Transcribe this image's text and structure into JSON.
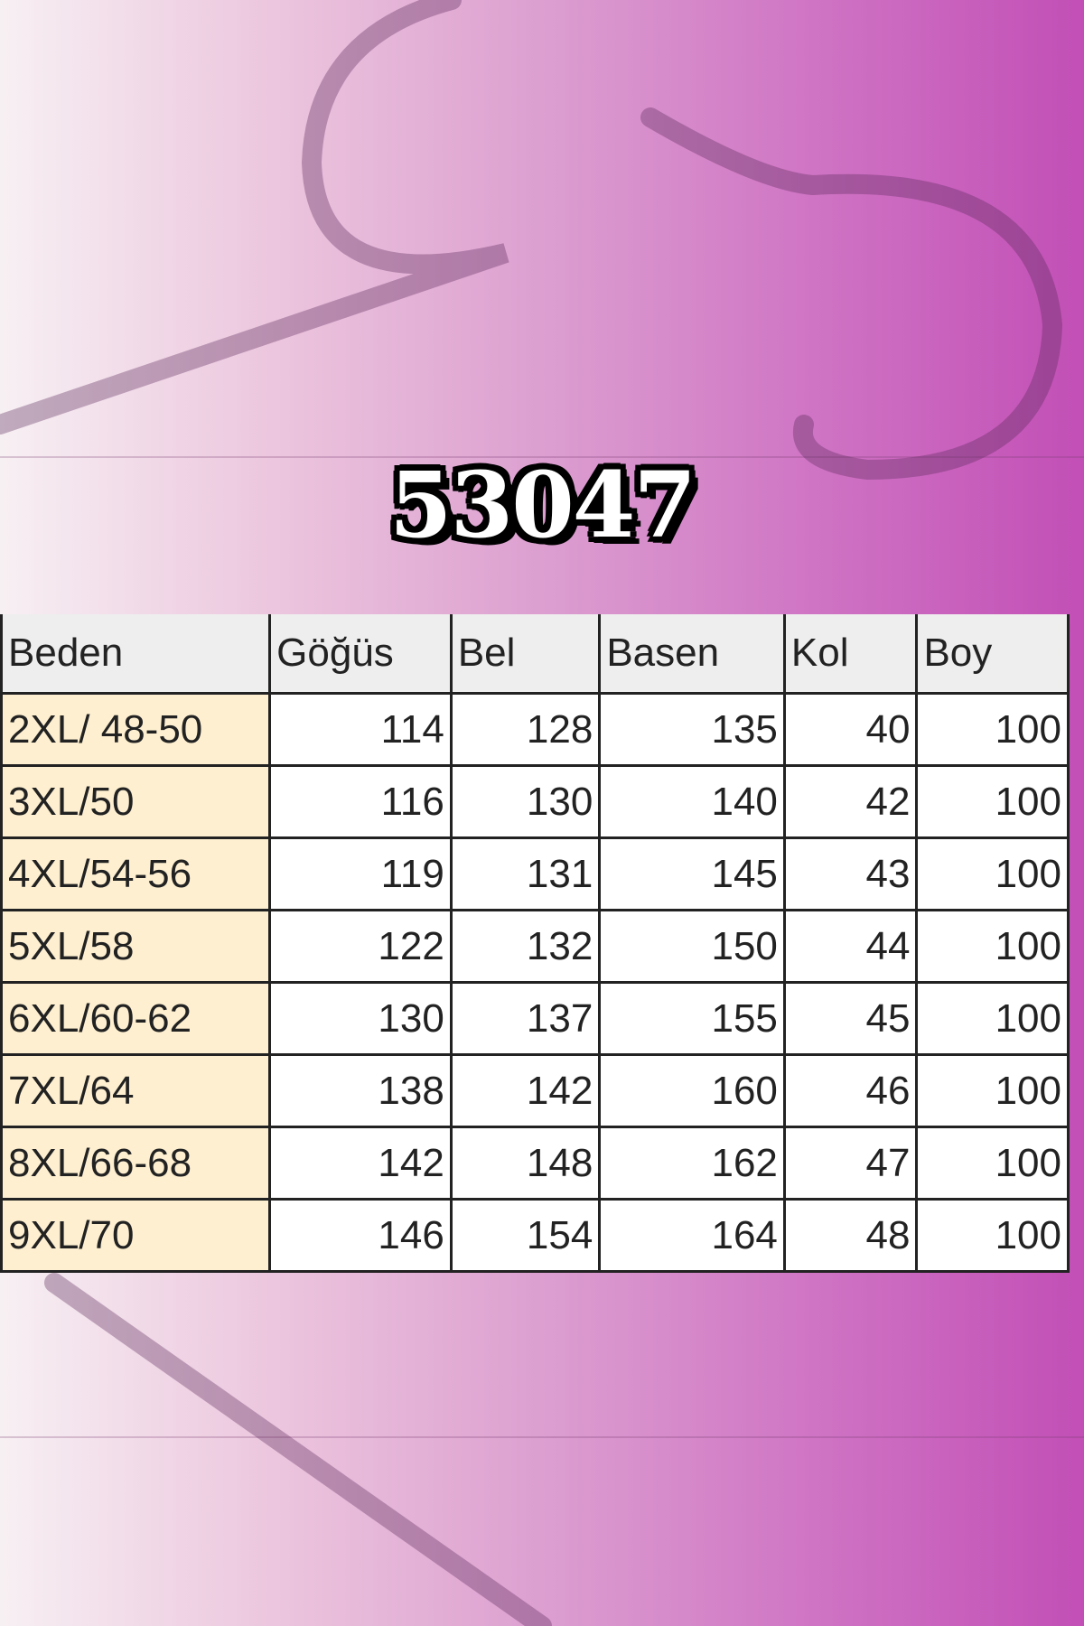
{
  "product_code": "53047",
  "colors": {
    "background_left": "#f7f0f3",
    "background_right": "#c24fb6",
    "size_cell": "#fdefd0",
    "header_cell": "#eeeeee"
  },
  "size_table": {
    "headers": [
      "Beden",
      "Göğüs",
      "Bel",
      "Basen",
      "Kol",
      "Boy"
    ],
    "rows": [
      [
        "2XL/ 48-50",
        "114",
        "128",
        "135",
        "40",
        "100"
      ],
      [
        "3XL/50",
        "116",
        "130",
        "140",
        "42",
        "100"
      ],
      [
        "4XL/54-56",
        "119",
        "131",
        "145",
        "43",
        "100"
      ],
      [
        "5XL/58",
        "122",
        "132",
        "150",
        "44",
        "100"
      ],
      [
        "6XL/60-62",
        "130",
        "137",
        "155",
        "45",
        "100"
      ],
      [
        "7XL/64",
        "138",
        "142",
        "160",
        "46",
        "100"
      ],
      [
        "8XL/66-68",
        "142",
        "148",
        "162",
        "47",
        "100"
      ],
      [
        "9XL/70",
        "146",
        "154",
        "164",
        "48",
        "100"
      ]
    ]
  }
}
